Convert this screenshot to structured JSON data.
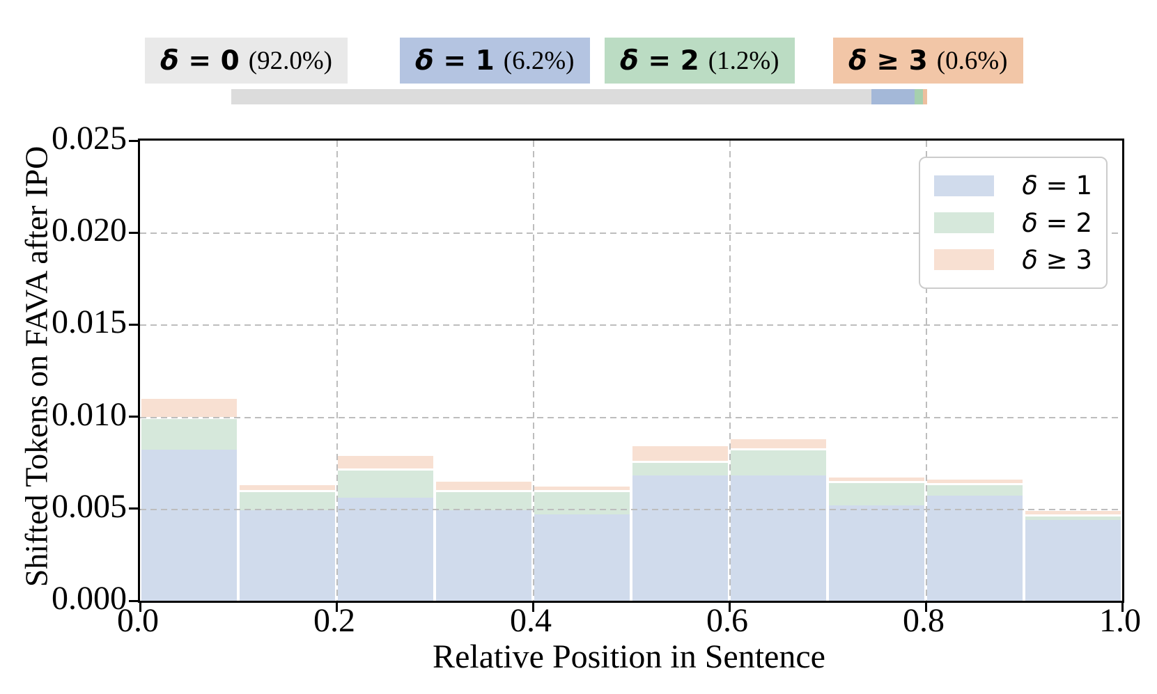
{
  "header": {
    "chips": [
      {
        "label": "δ = 0",
        "pct": "(92.0%)",
        "bg": "#e9e9e9"
      },
      {
        "label": "δ = 1",
        "pct": "(6.2%)",
        "bg": "#b4c4e1"
      },
      {
        "label": "δ = 2",
        "pct": "(1.2%)",
        "bg": "#bbdcc3"
      },
      {
        "label": "δ ≥ 3",
        "pct": "(0.6%)",
        "bg": "#f2c6a7"
      }
    ],
    "proportion_bar": {
      "segments": [
        {
          "name": "δ = 0",
          "percent": 92.0,
          "color": "#dcdcdc"
        },
        {
          "name": "δ = 1",
          "percent": 6.2,
          "color": "#a4b8d8"
        },
        {
          "name": "δ = 2",
          "percent": 1.2,
          "color": "#a6d0ae"
        },
        {
          "name": "δ ≥ 3",
          "percent": 0.6,
          "color": "#edbf9f"
        }
      ]
    }
  },
  "chart_data": {
    "type": "bar",
    "stacked": true,
    "xlabel": "Relative Position in Sentence",
    "ylabel": "Shifted Tokens on FAVA after IPO",
    "xlim": [
      0.0,
      1.0
    ],
    "ylim": [
      0.0,
      0.025
    ],
    "bin_edges": [
      0.0,
      0.1,
      0.2,
      0.3,
      0.4,
      0.5,
      0.6,
      0.7,
      0.8,
      0.9,
      1.0
    ],
    "xticks": [
      "0.0",
      "0.2",
      "0.4",
      "0.6",
      "0.8",
      "1.0"
    ],
    "yticks": [
      "0.000",
      "0.005",
      "0.010",
      "0.015",
      "0.020",
      "0.025"
    ],
    "grid": {
      "style": "dashed",
      "x": [
        0.2,
        0.4,
        0.6,
        0.8
      ],
      "y": [
        0.005,
        0.01,
        0.015,
        0.02
      ]
    },
    "legend": {
      "position": "upper right"
    },
    "series": [
      {
        "name": "δ = 1",
        "color": "#d0dbec",
        "values": [
          0.0082,
          0.0049,
          0.0056,
          0.0049,
          0.0047,
          0.0068,
          0.0068,
          0.0052,
          0.0057,
          0.0044
        ]
      },
      {
        "name": "δ = 2",
        "color": "#d6e8db",
        "values": [
          0.0018,
          0.0011,
          0.0016,
          0.0011,
          0.0013,
          0.0008,
          0.0015,
          0.0013,
          0.0007,
          0.0003
        ]
      },
      {
        "name": "δ ≥ 3",
        "color": "#f8e0d2",
        "values": [
          0.0011,
          0.0004,
          0.0008,
          0.0006,
          0.0003,
          0.0009,
          0.0006,
          0.0003,
          0.0003,
          0.0003
        ]
      }
    ]
  }
}
